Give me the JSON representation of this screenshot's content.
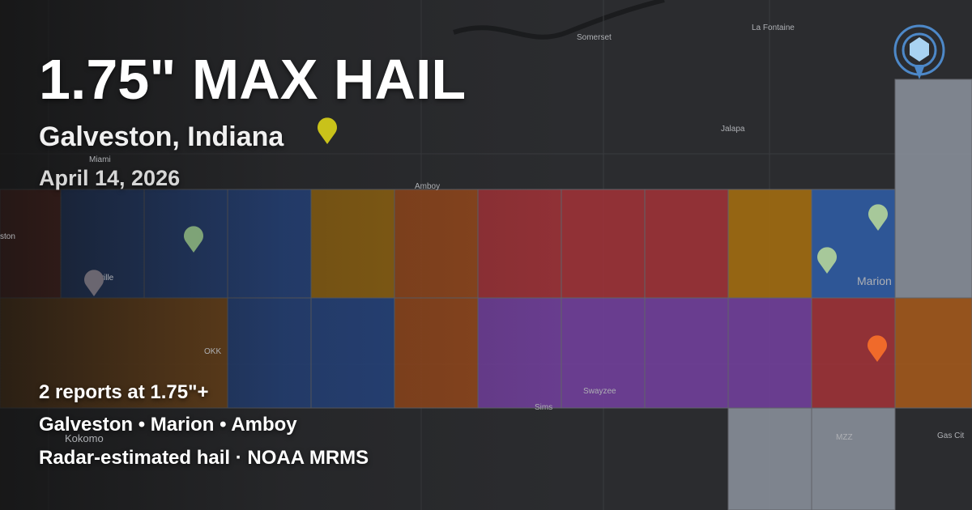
{
  "header": {
    "title": "1.75\" MAX HAIL",
    "location": "Galveston, Indiana",
    "date": "April 14, 2026"
  },
  "summary": {
    "reports": "2 reports at 1.75\"+",
    "places": "Galveston • Marion • Amboy",
    "source": "Radar-estimated hail · NOAA MRMS"
  },
  "map": {
    "labels": [
      "Somerset",
      "La Fontaine",
      "Miami",
      "Jalapa",
      "Amboy",
      "Marion",
      "OKK",
      "Sims",
      "Swayzee",
      "Kokomo",
      "MZZ",
      "Gas Cit",
      "ston",
      "sville"
    ]
  }
}
